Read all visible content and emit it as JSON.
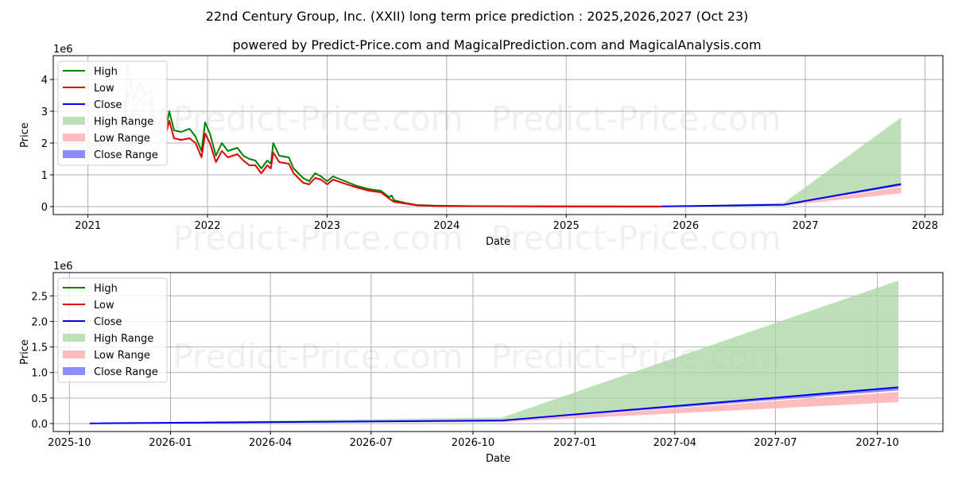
{
  "title": "22nd Century Group, Inc. (XXII) long term price prediction : 2025,2026,2027 (Oct 23)",
  "subtitle": "powered by Predict-Price.com and MagicalPrediction.com and MagicalAnalysis.com",
  "watermark": "Predict-Price.com",
  "colors": {
    "high": "#008000",
    "low": "#e00000",
    "close": "#0000ee",
    "high_range": "#a8d5a2",
    "low_range": "#ffb0b0",
    "close_range": "#7070ff"
  },
  "chart_data": [
    {
      "type": "line",
      "name": "full-history",
      "xlabel": "Date",
      "ylabel": "Price",
      "y_multiplier": "1e6",
      "xlim": [
        2020.71,
        2028.15
      ],
      "ylim": [
        -0.25,
        4.75
      ],
      "xticks": [
        {
          "v": 2021,
          "label": "2021"
        },
        {
          "v": 2022,
          "label": "2022"
        },
        {
          "v": 2023,
          "label": "2023"
        },
        {
          "v": 2024,
          "label": "2024"
        },
        {
          "v": 2025,
          "label": "2025"
        },
        {
          "v": 2026,
          "label": "2026"
        },
        {
          "v": 2027,
          "label": "2027"
        },
        {
          "v": 2028,
          "label": "2028"
        }
      ],
      "yticks": [
        {
          "v": 0,
          "label": "0"
        },
        {
          "v": 1,
          "label": "1"
        },
        {
          "v": 2,
          "label": "2"
        },
        {
          "v": 3,
          "label": "3"
        },
        {
          "v": 4,
          "label": "4"
        }
      ],
      "grid": true,
      "legend": "top-left",
      "early_high": [
        [
          2021.0,
          2.1
        ],
        [
          2021.05,
          1.9
        ],
        [
          2021.1,
          2.2
        ],
        [
          2021.15,
          3.1
        ],
        [
          2021.2,
          2.0
        ],
        [
          2021.25,
          2.7
        ],
        [
          2021.3,
          2.4
        ],
        [
          2021.33,
          4.55
        ],
        [
          2021.38,
          3.3
        ],
        [
          2021.43,
          3.9
        ],
        [
          2021.47,
          3.5
        ],
        [
          2021.52,
          3.7
        ],
        [
          2021.56,
          2.6
        ],
        [
          2021.6,
          2.6
        ],
        [
          2021.63,
          3.1
        ],
        [
          2021.66,
          2.6
        ]
      ],
      "early_low": [
        [
          2021.0,
          1.9
        ],
        [
          2021.05,
          1.7
        ],
        [
          2021.1,
          1.9
        ],
        [
          2021.15,
          2.5
        ],
        [
          2021.2,
          1.4
        ],
        [
          2021.25,
          2.3
        ],
        [
          2021.3,
          2.1
        ],
        [
          2021.33,
          3.6
        ],
        [
          2021.38,
          2.9
        ],
        [
          2021.43,
          3.4
        ],
        [
          2021.47,
          3.2
        ],
        [
          2021.52,
          3.3
        ],
        [
          2021.56,
          2.3
        ],
        [
          2021.6,
          2.3
        ],
        [
          2021.63,
          2.7
        ],
        [
          2021.66,
          2.4
        ]
      ],
      "high": [
        [
          2021.66,
          2.6
        ],
        [
          2021.68,
          3.0
        ],
        [
          2021.72,
          2.4
        ],
        [
          2021.78,
          2.35
        ],
        [
          2021.85,
          2.45
        ],
        [
          2021.9,
          2.2
        ],
        [
          2021.95,
          1.75
        ],
        [
          2021.98,
          2.65
        ],
        [
          2022.02,
          2.3
        ],
        [
          2022.07,
          1.6
        ],
        [
          2022.12,
          2.0
        ],
        [
          2022.17,
          1.75
        ],
        [
          2022.25,
          1.85
        ],
        [
          2022.3,
          1.6
        ],
        [
          2022.35,
          1.5
        ],
        [
          2022.4,
          1.45
        ],
        [
          2022.45,
          1.2
        ],
        [
          2022.5,
          1.45
        ],
        [
          2022.53,
          1.35
        ],
        [
          2022.55,
          2.0
        ],
        [
          2022.6,
          1.6
        ],
        [
          2022.68,
          1.55
        ],
        [
          2022.72,
          1.2
        ],
        [
          2022.8,
          0.9
        ],
        [
          2022.85,
          0.8
        ],
        [
          2022.9,
          1.05
        ],
        [
          2022.95,
          0.95
        ],
        [
          2023.0,
          0.8
        ],
        [
          2023.05,
          0.95
        ],
        [
          2023.15,
          0.8
        ],
        [
          2023.25,
          0.65
        ],
        [
          2023.35,
          0.55
        ],
        [
          2023.45,
          0.5
        ],
        [
          2023.52,
          0.3
        ],
        [
          2023.54,
          0.35
        ],
        [
          2023.56,
          0.2
        ],
        [
          2023.65,
          0.12
        ],
        [
          2023.75,
          0.05
        ],
        [
          2023.9,
          0.03
        ],
        [
          2024.2,
          0.015
        ],
        [
          2025.0,
          0.006
        ],
        [
          2025.8,
          0.003
        ]
      ],
      "low": [
        [
          2021.66,
          2.4
        ],
        [
          2021.68,
          2.7
        ],
        [
          2021.72,
          2.15
        ],
        [
          2021.78,
          2.1
        ],
        [
          2021.85,
          2.15
        ],
        [
          2021.9,
          2.0
        ],
        [
          2021.95,
          1.55
        ],
        [
          2021.98,
          2.3
        ],
        [
          2022.02,
          2.0
        ],
        [
          2022.07,
          1.4
        ],
        [
          2022.12,
          1.75
        ],
        [
          2022.17,
          1.55
        ],
        [
          2022.25,
          1.65
        ],
        [
          2022.3,
          1.45
        ],
        [
          2022.35,
          1.3
        ],
        [
          2022.4,
          1.3
        ],
        [
          2022.45,
          1.05
        ],
        [
          2022.5,
          1.3
        ],
        [
          2022.53,
          1.2
        ],
        [
          2022.55,
          1.7
        ],
        [
          2022.6,
          1.4
        ],
        [
          2022.68,
          1.35
        ],
        [
          2022.72,
          1.05
        ],
        [
          2022.8,
          0.75
        ],
        [
          2022.85,
          0.7
        ],
        [
          2022.9,
          0.9
        ],
        [
          2022.95,
          0.85
        ],
        [
          2023.0,
          0.7
        ],
        [
          2023.05,
          0.85
        ],
        [
          2023.15,
          0.72
        ],
        [
          2023.25,
          0.6
        ],
        [
          2023.35,
          0.5
        ],
        [
          2023.45,
          0.45
        ],
        [
          2023.52,
          0.25
        ],
        [
          2023.56,
          0.15
        ],
        [
          2023.65,
          0.1
        ],
        [
          2023.75,
          0.04
        ],
        [
          2023.9,
          0.02
        ],
        [
          2024.2,
          0.012
        ],
        [
          2025.0,
          0.005
        ],
        [
          2025.8,
          0.002
        ]
      ],
      "forecast": {
        "x": [
          2025.8,
          2026.82,
          2027.8
        ],
        "close": [
          0.005,
          0.06,
          0.71
        ],
        "high_range": [
          [
            0.005,
            0.01
          ],
          [
            0.06,
            0.12
          ],
          [
            0.71,
            2.8
          ]
        ],
        "low_range": [
          [
            0.002,
            0.004
          ],
          [
            0.03,
            0.05
          ],
          [
            0.42,
            0.62
          ]
        ],
        "close_range": [
          [
            0.004,
            0.006
          ],
          [
            0.05,
            0.065
          ],
          [
            0.65,
            0.72
          ]
        ]
      }
    },
    {
      "type": "line",
      "name": "forecast-detail",
      "xlabel": "Date",
      "ylabel": "Price",
      "y_multiplier": "1e6",
      "xlim": [
        2025.71,
        2027.91
      ],
      "ylim": [
        -0.155,
        2.955
      ],
      "xticks": [
        {
          "v": 2025.75,
          "label": "2025-10"
        },
        {
          "v": 2026.0,
          "label": "2026-01"
        },
        {
          "v": 2026.247,
          "label": "2026-04"
        },
        {
          "v": 2026.496,
          "label": "2026-07"
        },
        {
          "v": 2026.748,
          "label": "2026-10"
        },
        {
          "v": 2027.0,
          "label": "2027-01"
        },
        {
          "v": 2027.247,
          "label": "2027-04"
        },
        {
          "v": 2027.496,
          "label": "2027-07"
        },
        {
          "v": 2027.748,
          "label": "2027-10"
        }
      ],
      "yticks": [
        {
          "v": 0,
          "label": "0.0"
        },
        {
          "v": 0.5,
          "label": "0.5"
        },
        {
          "v": 1.0,
          "label": "1.0"
        },
        {
          "v": 1.5,
          "label": "1.5"
        },
        {
          "v": 2.0,
          "label": "2.0"
        },
        {
          "v": 2.5,
          "label": "2.5"
        }
      ],
      "grid": true,
      "legend": "top-left",
      "forecast_ref": "same as full-history forecast"
    }
  ],
  "legend": [
    "High",
    "Low",
    "Close",
    "High Range",
    "Low Range",
    "Close Range"
  ]
}
